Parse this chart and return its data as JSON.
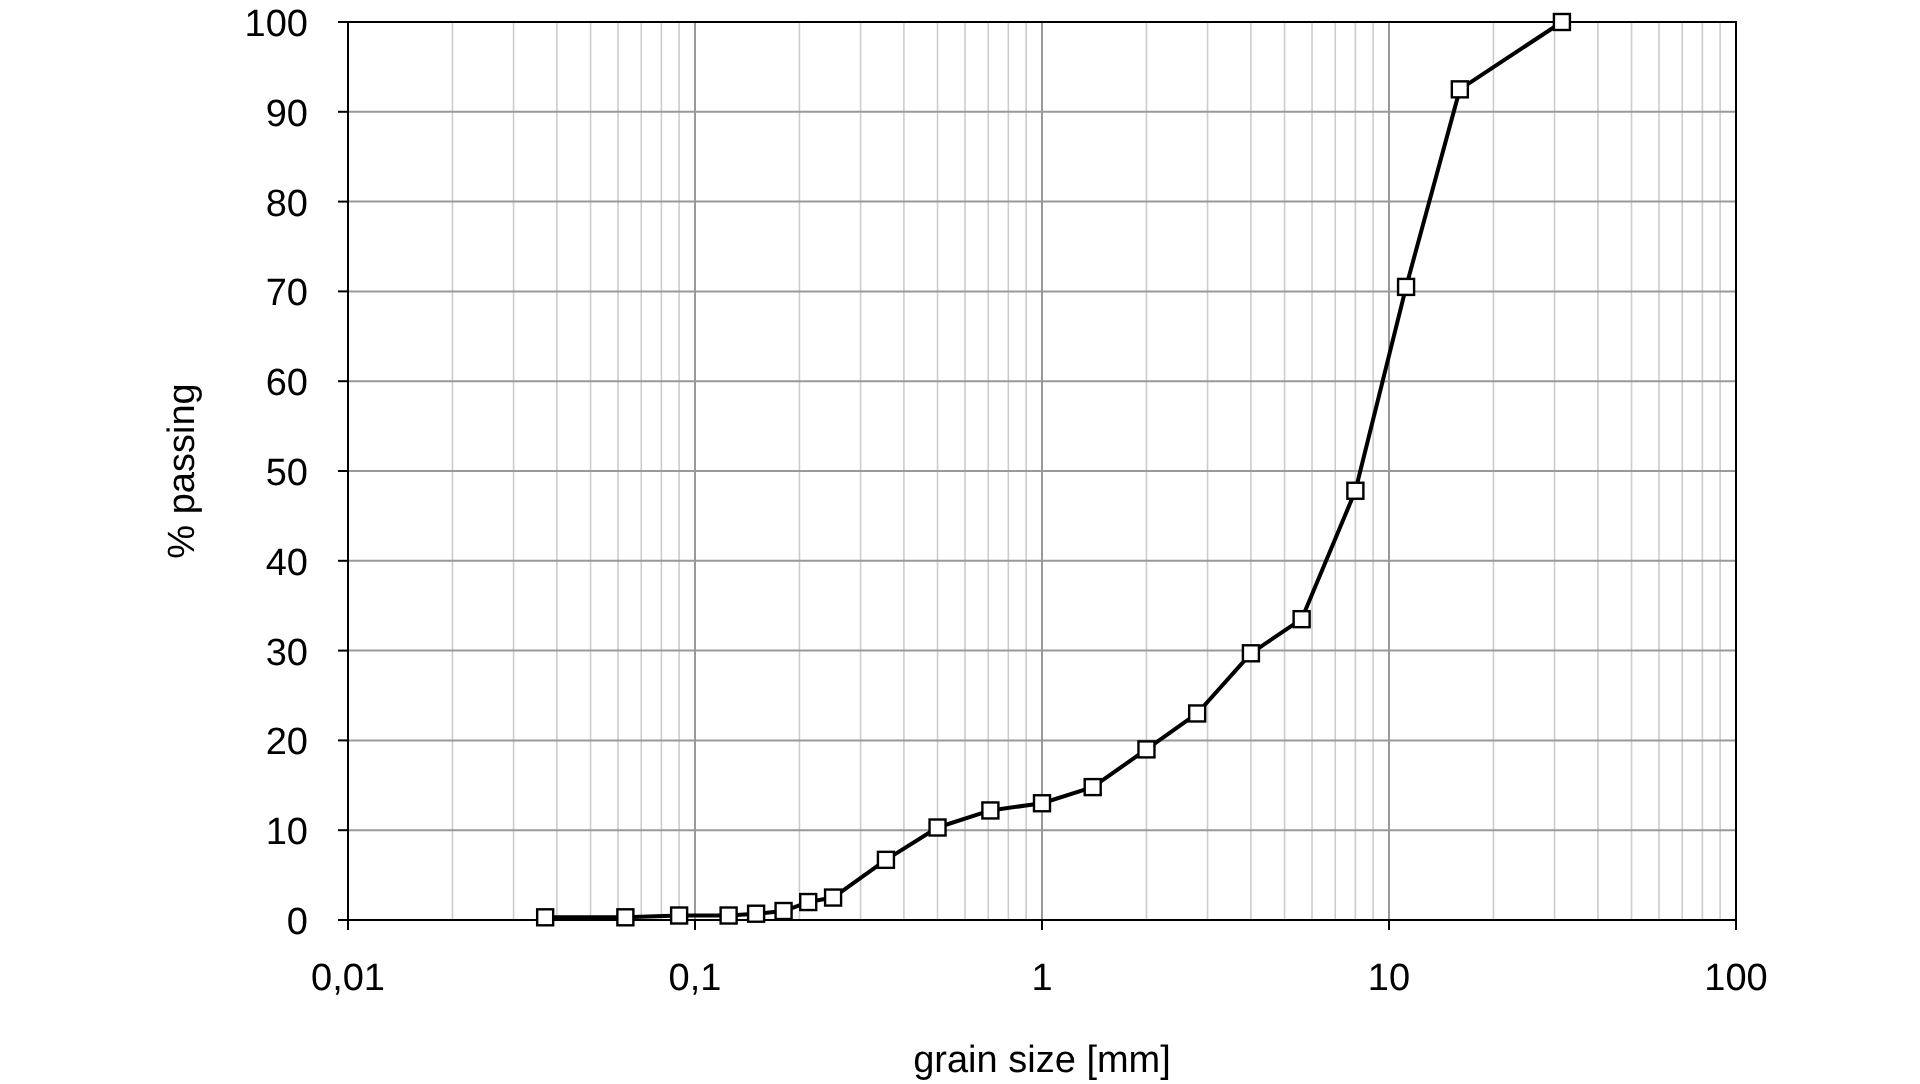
{
  "chart_data": {
    "type": "line",
    "xlabel": "grain size [mm]",
    "ylabel": "% passing",
    "log": "x",
    "grid": true,
    "marker": "square",
    "line_style": "solid",
    "xlim": [
      0.01,
      100
    ],
    "ylim": [
      0,
      100
    ],
    "xticks": [
      {
        "value": 0.01,
        "label": "0,01"
      },
      {
        "value": 0.1,
        "label": "0,1"
      },
      1,
      10,
      100
    ],
    "yticks": [
      0,
      10,
      20,
      30,
      40,
      50,
      60,
      70,
      80,
      90,
      100
    ],
    "series": [
      {
        "color": "#000000",
        "x": [
          0.037,
          0.063,
          0.09,
          0.125,
          0.15,
          0.18,
          0.212,
          0.25,
          0.355,
          0.5,
          0.71,
          1,
          1.4,
          2,
          2.8,
          4,
          5.6,
          8,
          11.2,
          16,
          31.5
        ],
        "values": [
          0.3,
          0.3,
          0.5,
          0.5,
          0.7,
          1,
          2,
          2.5,
          6.7,
          10.3,
          12.2,
          13,
          14.8,
          19,
          23,
          29.7,
          33.5,
          47.8,
          70.5,
          92.5,
          100
        ]
      }
    ]
  }
}
